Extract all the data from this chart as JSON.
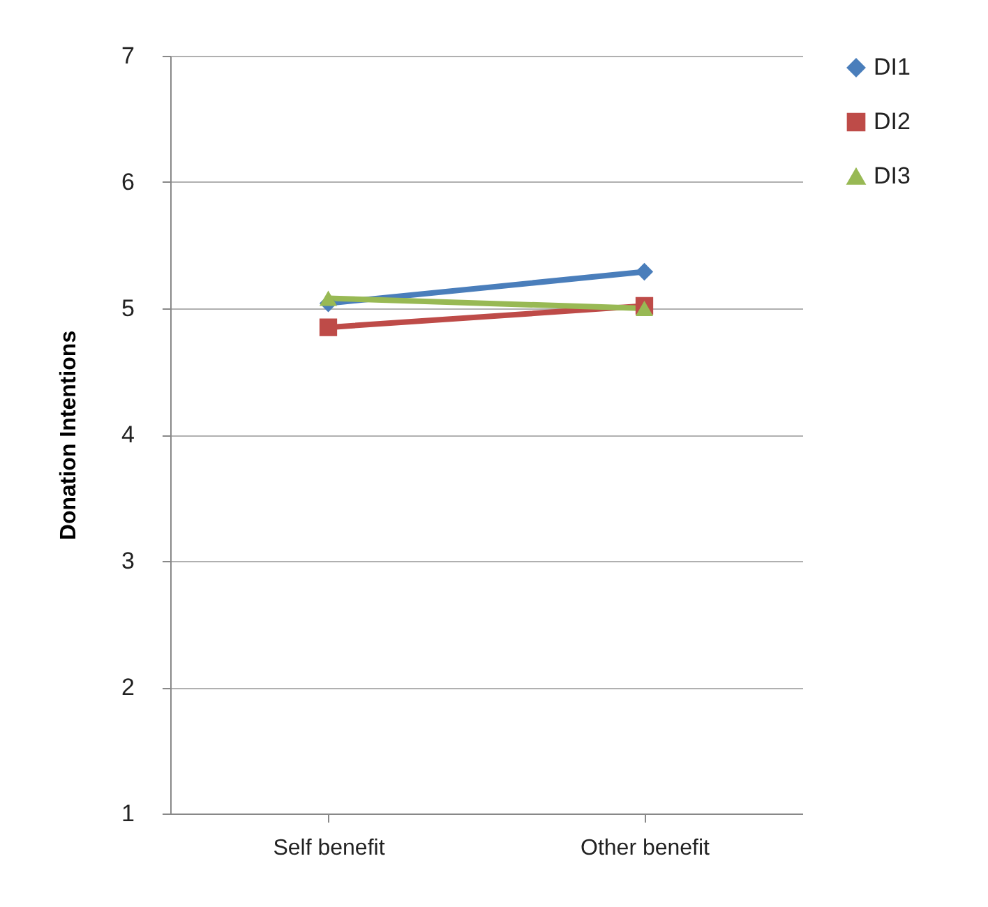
{
  "chart_data": {
    "type": "line",
    "ylabel": "Donation Intentions",
    "categories": [
      "Self benefit",
      "Other benefit"
    ],
    "series": [
      {
        "name": "DI1",
        "color": "#4a7ebb",
        "marker": "diamond",
        "values": [
          5.04,
          5.29
        ]
      },
      {
        "name": "DI2",
        "color": "#be4b48",
        "marker": "square",
        "values": [
          4.85,
          5.02
        ]
      },
      {
        "name": "DI3",
        "color": "#98b954",
        "marker": "triangle",
        "values": [
          5.08,
          5.0
        ]
      }
    ],
    "ylim": [
      1,
      7
    ],
    "yticks": [
      1,
      2,
      3,
      4,
      5,
      6,
      7
    ],
    "grid": "y",
    "legend": "right",
    "line_style": "solid"
  }
}
